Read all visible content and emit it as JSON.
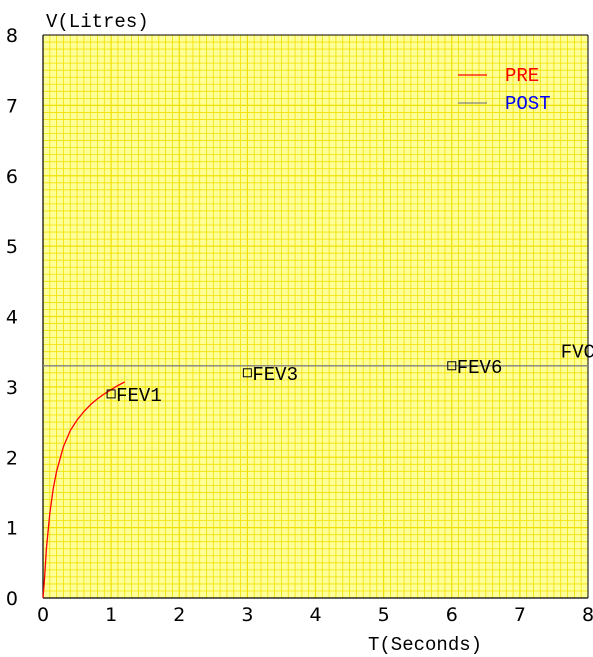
{
  "chart_data": {
    "type": "line",
    "ylabel": "V(Litres)",
    "xlabel": "T(Seconds)",
    "xlim": [
      0,
      8
    ],
    "ylim": [
      0,
      8
    ],
    "x_ticks": [
      "0",
      "1",
      "2",
      "3",
      "4",
      "5",
      "6",
      "7",
      "8"
    ],
    "y_ticks": [
      "0",
      "1",
      "2",
      "3",
      "4",
      "5",
      "6",
      "7",
      "8"
    ],
    "grid": true,
    "background_color": "#ffff99",
    "grid_color": "#f0e000",
    "legend_placement": "top-right",
    "series": [
      {
        "name": "PRE",
        "color": "#ff0000",
        "label_color": "#ff0000",
        "x": [
          0,
          0.02,
          0.05,
          0.1,
          0.15,
          0.2,
          0.3,
          0.4,
          0.5,
          0.6,
          0.7,
          0.8,
          0.9,
          1.0,
          1.1,
          1.2
        ],
        "y": [
          0,
          0.25,
          0.7,
          1.2,
          1.55,
          1.8,
          2.15,
          2.38,
          2.53,
          2.65,
          2.75,
          2.83,
          2.9,
          2.96,
          3.02,
          3.07
        ]
      },
      {
        "name": "POST",
        "color": "#808080",
        "label_color": "#0000ff",
        "x": [
          0,
          8
        ],
        "y": [
          3.3,
          3.3
        ]
      }
    ],
    "markers": [
      {
        "label": "FEV1",
        "x": 1.0,
        "y": 2.9
      },
      {
        "label": "FEV3",
        "x": 3.0,
        "y": 3.2
      },
      {
        "label": "FEV6",
        "x": 6.0,
        "y": 3.3
      }
    ],
    "annotations": [
      {
        "text": "FVC",
        "x": 7.6,
        "y": 3.42
      }
    ]
  }
}
